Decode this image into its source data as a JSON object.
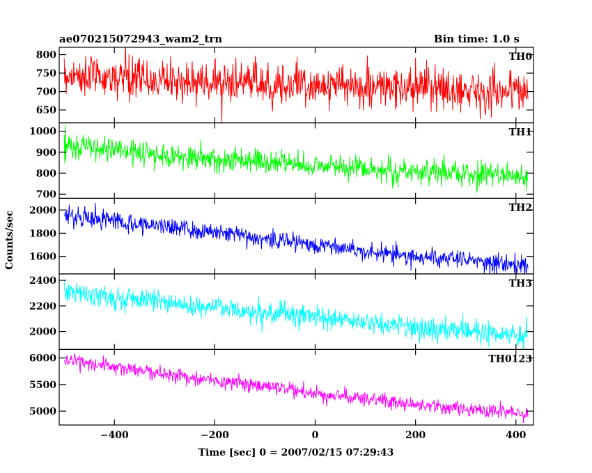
{
  "chart_data": {
    "type": "line",
    "title": "ae070215072943_wam2_trn",
    "bin_time": "Bin time: 1.0 s",
    "xlabel": "Time [sec] 0 = 2007/02/15 07:29:43",
    "ylabel": "Counts/sec",
    "xlim": [
      -510,
      435
    ],
    "x_ticks": [
      -400,
      -200,
      0,
      200,
      400
    ],
    "x_tick_labels": [
      "−400",
      "−200",
      "0",
      "200",
      "400"
    ],
    "x_start": -500,
    "x_end": 424,
    "x_step": 1,
    "grid": false,
    "panels": [
      {
        "name": "TH0",
        "color": "#ff0000",
        "ylim": [
          615,
          820
        ],
        "y_ticks": [
          650,
          700,
          750,
          800
        ],
        "trend": [
          [
            -500,
            745
          ],
          [
            -300,
            730
          ],
          [
            0,
            718
          ],
          [
            200,
            708
          ],
          [
            424,
            700
          ]
        ],
        "noise": 28
      },
      {
        "name": "TH1",
        "color": "#00ff00",
        "ylim": [
          680,
          1040
        ],
        "y_ticks": [
          700,
          800,
          900,
          1000
        ],
        "trend": [
          [
            -500,
            935
          ],
          [
            -300,
            885
          ],
          [
            0,
            838
          ],
          [
            200,
            808
          ],
          [
            424,
            782
          ]
        ],
        "noise": 30
      },
      {
        "name": "TH2",
        "color": "#0000ff",
        "ylim": [
          1450,
          2100
        ],
        "y_ticks": [
          1600,
          1800,
          2000
        ],
        "trend": [
          [
            -500,
            1955
          ],
          [
            -300,
            1860
          ],
          [
            0,
            1705
          ],
          [
            200,
            1595
          ],
          [
            424,
            1530
          ]
        ],
        "noise": 40
      },
      {
        "name": "TH3",
        "color": "#00ffff",
        "ylim": [
          1860,
          2450
        ],
        "y_ticks": [
          2000,
          2200,
          2400
        ],
        "trend": [
          [
            -500,
            2310
          ],
          [
            -300,
            2230
          ],
          [
            0,
            2110
          ],
          [
            200,
            2030
          ],
          [
            424,
            1970
          ]
        ],
        "noise": 45
      },
      {
        "name": "TH0123",
        "color": "#ff00ff",
        "ylim": [
          4740,
          6160
        ],
        "y_ticks": [
          5000,
          5500,
          6000
        ],
        "trend": [
          [
            -500,
            5960
          ],
          [
            -300,
            5700
          ],
          [
            0,
            5330
          ],
          [
            200,
            5130
          ],
          [
            424,
            4930
          ]
        ],
        "noise": 70
      }
    ]
  }
}
